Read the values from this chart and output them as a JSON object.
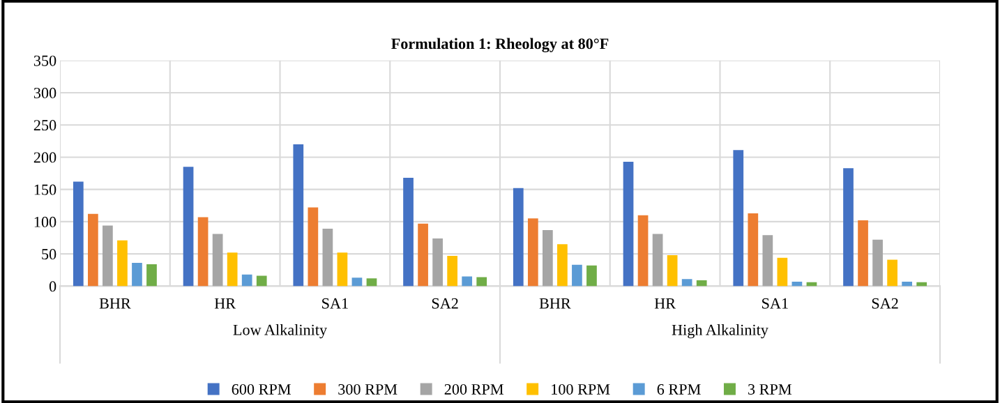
{
  "chart_data": {
    "type": "bar",
    "title": "Formulation 1: Rheology at 80°F",
    "categories": [
      "BHR",
      "HR",
      "SA1",
      "SA2",
      "BHR",
      "HR",
      "SA1",
      "SA2"
    ],
    "annotations": [
      "Low Alkalinity",
      "High Alkalinity"
    ],
    "series": [
      {
        "name": "600 RPM",
        "color": "#4472c4",
        "values": [
          162,
          185,
          220,
          168,
          152,
          193,
          211,
          183
        ]
      },
      {
        "name": "300 RPM",
        "color": "#ed7d31",
        "values": [
          112,
          107,
          122,
          97,
          105,
          110,
          113,
          102
        ]
      },
      {
        "name": "200 RPM",
        "color": "#a5a5a5",
        "values": [
          94,
          81,
          89,
          74,
          87,
          81,
          79,
          72
        ]
      },
      {
        "name": "100 RPM",
        "color": "#ffc000",
        "values": [
          71,
          52,
          52,
          47,
          65,
          48,
          44,
          41
        ]
      },
      {
        "name": "6 RPM",
        "color": "#5b9bd5",
        "values": [
          36,
          18,
          13,
          15,
          33,
          11,
          7,
          7
        ]
      },
      {
        "name": "3 RPM",
        "color": "#70ad47",
        "values": [
          34,
          16,
          12,
          14,
          32,
          9,
          6,
          6
        ]
      }
    ],
    "ylim": [
      0,
      350
    ],
    "yticks": [
      0,
      50,
      100,
      150,
      200,
      250,
      300,
      350
    ],
    "grid": true,
    "legend": "bottom"
  }
}
